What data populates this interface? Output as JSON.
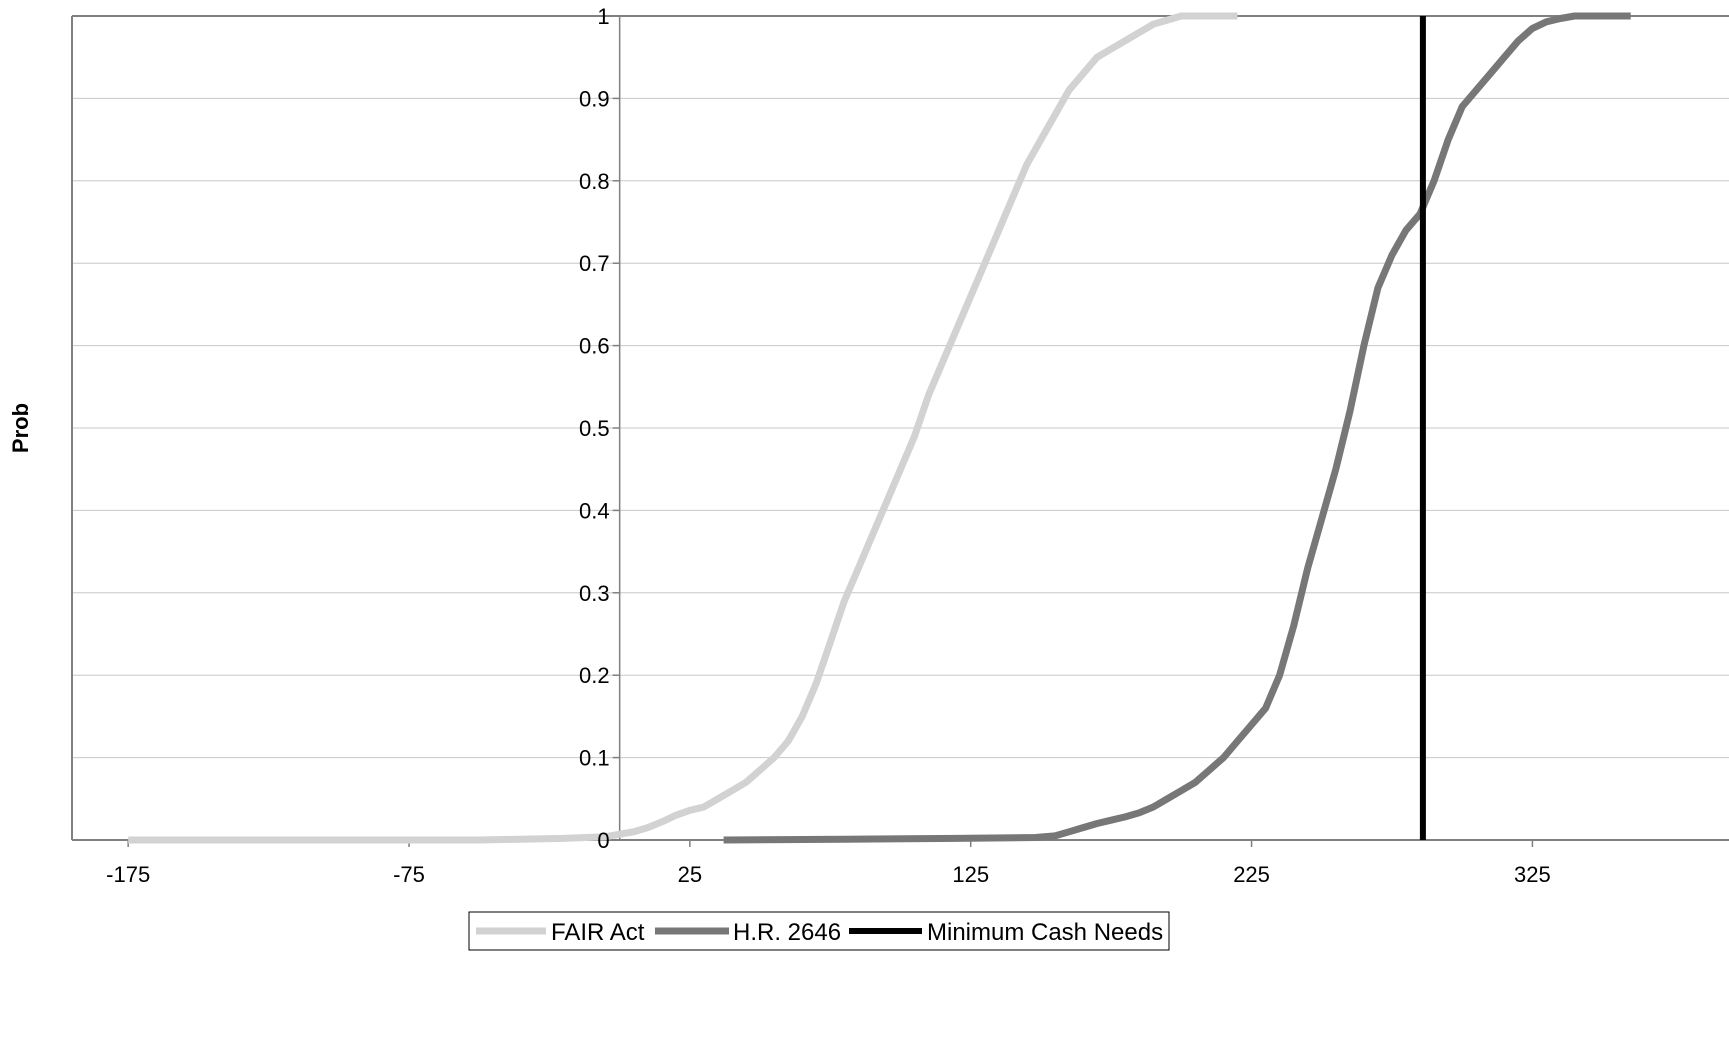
{
  "chart_data": {
    "type": "line",
    "title": "",
    "xlabel": "",
    "ylabel": "Prob",
    "xlim": [
      -195,
      395
    ],
    "ylim": [
      0,
      1
    ],
    "x_ticks": [
      -175,
      -75,
      25,
      125,
      225,
      325
    ],
    "y_ticks": [
      0,
      0.1,
      0.2,
      0.3,
      0.4,
      0.5,
      0.6,
      0.7,
      0.8,
      0.9,
      1
    ],
    "grid": true,
    "y_axis_at_x": 0,
    "legend_position": "bottom",
    "series": [
      {
        "name": "FAIR Act",
        "color": "#d2d2d2",
        "x": [
          -175,
          -100,
          -50,
          -20,
          -5,
          0,
          5,
          10,
          15,
          20,
          25,
          30,
          35,
          40,
          45,
          50,
          55,
          60,
          65,
          70,
          75,
          80,
          85,
          90,
          95,
          100,
          105,
          110,
          115,
          120,
          125,
          130,
          135,
          140,
          145,
          150,
          155,
          160,
          165,
          170,
          175,
          180,
          185,
          190,
          195,
          200,
          205,
          210,
          215,
          220
        ],
        "values": [
          0,
          0,
          0,
          0.002,
          0.004,
          0.007,
          0.01,
          0.015,
          0.022,
          0.03,
          0.036,
          0.04,
          0.05,
          0.06,
          0.07,
          0.085,
          0.1,
          0.12,
          0.15,
          0.19,
          0.24,
          0.29,
          0.33,
          0.37,
          0.41,
          0.45,
          0.49,
          0.54,
          0.58,
          0.62,
          0.66,
          0.7,
          0.74,
          0.78,
          0.82,
          0.85,
          0.88,
          0.91,
          0.93,
          0.95,
          0.96,
          0.97,
          0.98,
          0.99,
          0.995,
          1,
          1,
          1,
          1,
          1
        ]
      },
      {
        "name": "H.R. 2646",
        "color": "#777777",
        "x": [
          37,
          80,
          120,
          148,
          155,
          160,
          165,
          170,
          175,
          180,
          185,
          190,
          195,
          200,
          205,
          210,
          215,
          220,
          225,
          230,
          235,
          240,
          245,
          250,
          255,
          260,
          265,
          270,
          275,
          280,
          285,
          290,
          295,
          300,
          305,
          310,
          315,
          320,
          325,
          330,
          335,
          340,
          345,
          350,
          355,
          360
        ],
        "values": [
          0,
          0.001,
          0.002,
          0.003,
          0.005,
          0.01,
          0.015,
          0.02,
          0.024,
          0.028,
          0.033,
          0.04,
          0.05,
          0.06,
          0.07,
          0.085,
          0.1,
          0.12,
          0.14,
          0.16,
          0.2,
          0.26,
          0.33,
          0.39,
          0.45,
          0.52,
          0.6,
          0.67,
          0.71,
          0.74,
          0.76,
          0.8,
          0.85,
          0.89,
          0.91,
          0.93,
          0.95,
          0.97,
          0.985,
          0.993,
          0.997,
          1,
          1,
          1,
          1,
          1
        ]
      },
      {
        "name": "Minimum Cash Needs",
        "color": "#000000",
        "x": [
          286,
          286
        ],
        "values": [
          0,
          1
        ]
      }
    ]
  }
}
